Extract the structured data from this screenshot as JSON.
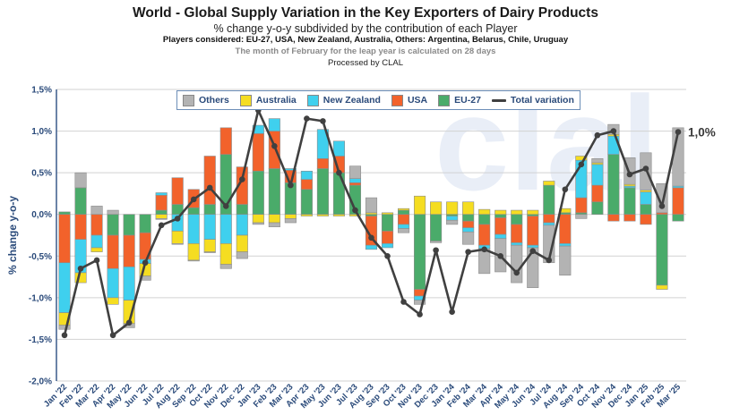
{
  "title": "World - Global Supply Variation in the Key Exporters of Dairy Products",
  "subtitle": "% change y-o-y subdivided by the contribution of each Player",
  "players_note": "Players considered: EU-27, USA, New Zealand, Australia, Others: Argentina, Belarus, Chile, Uruguay",
  "leap_note": "The month of February for the leap year is calculated on 28 days",
  "processed_by": "Processed by CLAL",
  "watermark": "clal",
  "colors": {
    "Others": "#b3b3b3",
    "Australia": "#f5dd21",
    "New Zealand": "#3fd0ee",
    "USA": "#f2622b",
    "EU-27": "#4aab6a",
    "Total variation": "#404040"
  },
  "chart_data": {
    "type": "bar",
    "stacked": true,
    "title": "World - Global Supply Variation in the Key Exporters of Dairy Products",
    "ylabel": "% change y-o-y",
    "ylim": [
      -2.0,
      1.5
    ],
    "yticks": [
      "-2,0%",
      "-1,5%",
      "-1,0%",
      "-0,5%",
      "0,0%",
      "0,5%",
      "1,0%",
      "1,5%"
    ],
    "grid": true,
    "legend_position": "top-center",
    "end_label": "1,0%",
    "categories": [
      "Jan '22",
      "Feb '22",
      "Mar '22",
      "Apr '22",
      "May '22",
      "Jun '22",
      "Jul '22",
      "Aug '22",
      "Sep '22",
      "Oct '22",
      "Nov '22",
      "Dec '22",
      "Jan '23",
      "Feb '23",
      "Mar '23",
      "Apr '23",
      "May '23",
      "Jun '23",
      "Jul '23",
      "Aug '23",
      "Sep '23",
      "Oct '23",
      "Nov '23",
      "Dec '23",
      "Jan '24",
      "Feb '24",
      "Mar '24",
      "Apr '24",
      "May '24",
      "Jun '24",
      "Jul '24",
      "Aug '24",
      "Sep '24",
      "Oct '24",
      "Nov '24",
      "Dec '24",
      "Jan '25",
      "Feb '25",
      "Mar '25"
    ],
    "series": [
      {
        "name": "EU-27",
        "values": [
          0.03,
          0.32,
          0.0,
          -0.25,
          -0.25,
          -0.22,
          0.05,
          0.12,
          0.08,
          0.12,
          0.72,
          0.12,
          0.52,
          0.55,
          0.38,
          0.3,
          0.55,
          0.5,
          0.35,
          -0.02,
          -0.2,
          0.05,
          -0.9,
          -0.32,
          -0.02,
          -0.08,
          -0.12,
          -0.04,
          -0.12,
          -0.02,
          0.35,
          0.02,
          0.02,
          0.15,
          0.72,
          0.32,
          0.12,
          -0.85,
          -0.08
        ]
      },
      {
        "name": "USA",
        "values": [
          -0.58,
          -0.3,
          -0.25,
          -0.4,
          -0.38,
          -0.32,
          0.18,
          0.32,
          0.22,
          0.58,
          0.32,
          0.45,
          0.45,
          0.45,
          0.15,
          0.12,
          0.12,
          0.2,
          0.03,
          -0.35,
          -0.15,
          -0.12,
          -0.08,
          0.0,
          0.0,
          -0.08,
          -0.25,
          -0.2,
          -0.22,
          -0.35,
          -0.1,
          -0.35,
          0.18,
          0.2,
          -0.08,
          -0.08,
          -0.12,
          0.02,
          0.32
        ]
      },
      {
        "name": "New Zealand",
        "values": [
          -0.6,
          -0.4,
          -0.15,
          -0.35,
          -0.4,
          -0.05,
          0.03,
          -0.2,
          -0.35,
          -0.3,
          -0.35,
          -0.25,
          0.1,
          0.15,
          0.02,
          0.1,
          0.35,
          0.18,
          0.05,
          -0.05,
          -0.05,
          -0.05,
          -0.05,
          0.0,
          -0.05,
          -0.05,
          -0.04,
          -0.05,
          -0.03,
          -0.03,
          -0.03,
          -0.03,
          0.45,
          0.25,
          0.22,
          0.02,
          0.15,
          0.0,
          0.02
        ]
      },
      {
        "name": "Australia",
        "values": [
          -0.15,
          -0.12,
          -0.05,
          -0.08,
          -0.28,
          -0.15,
          -0.05,
          -0.15,
          -0.2,
          -0.15,
          -0.25,
          -0.2,
          -0.1,
          -0.1,
          -0.05,
          -0.02,
          -0.02,
          -0.02,
          -0.02,
          0.02,
          0.02,
          0.02,
          0.22,
          0.15,
          0.15,
          0.15,
          0.06,
          0.05,
          0.05,
          0.05,
          0.05,
          0.05,
          0.05,
          0.02,
          0.02,
          0.02,
          0.02,
          -0.05,
          0.0
        ]
      },
      {
        "name": "Others",
        "values": [
          -0.05,
          0.18,
          0.1,
          0.05,
          -0.05,
          -0.05,
          -0.01,
          -0.01,
          -0.01,
          -0.01,
          -0.05,
          -0.08,
          -0.02,
          -0.05,
          -0.05,
          0.0,
          0.0,
          0.0,
          0.15,
          0.18,
          0.0,
          -0.05,
          -0.05,
          -0.02,
          -0.05,
          -0.15,
          -0.3,
          -0.4,
          -0.45,
          -0.48,
          -0.45,
          -0.35,
          -0.05,
          0.05,
          0.12,
          0.32,
          0.45,
          0.35,
          0.7
        ]
      }
    ],
    "line": {
      "name": "Total variation",
      "values": [
        -1.45,
        -0.65,
        -0.55,
        -1.45,
        -1.3,
        -0.58,
        -0.13,
        -0.05,
        0.18,
        0.32,
        0.1,
        0.42,
        1.25,
        0.82,
        0.35,
        1.15,
        1.12,
        0.5,
        0.05,
        -0.28,
        -0.5,
        -1.05,
        -1.2,
        -0.43,
        -1.17,
        -0.45,
        -0.42,
        -0.5,
        -0.7,
        -0.44,
        -0.55,
        0.3,
        0.6,
        0.95,
        1.0,
        0.48,
        0.55,
        0.1,
        0.99
      ]
    }
  }
}
